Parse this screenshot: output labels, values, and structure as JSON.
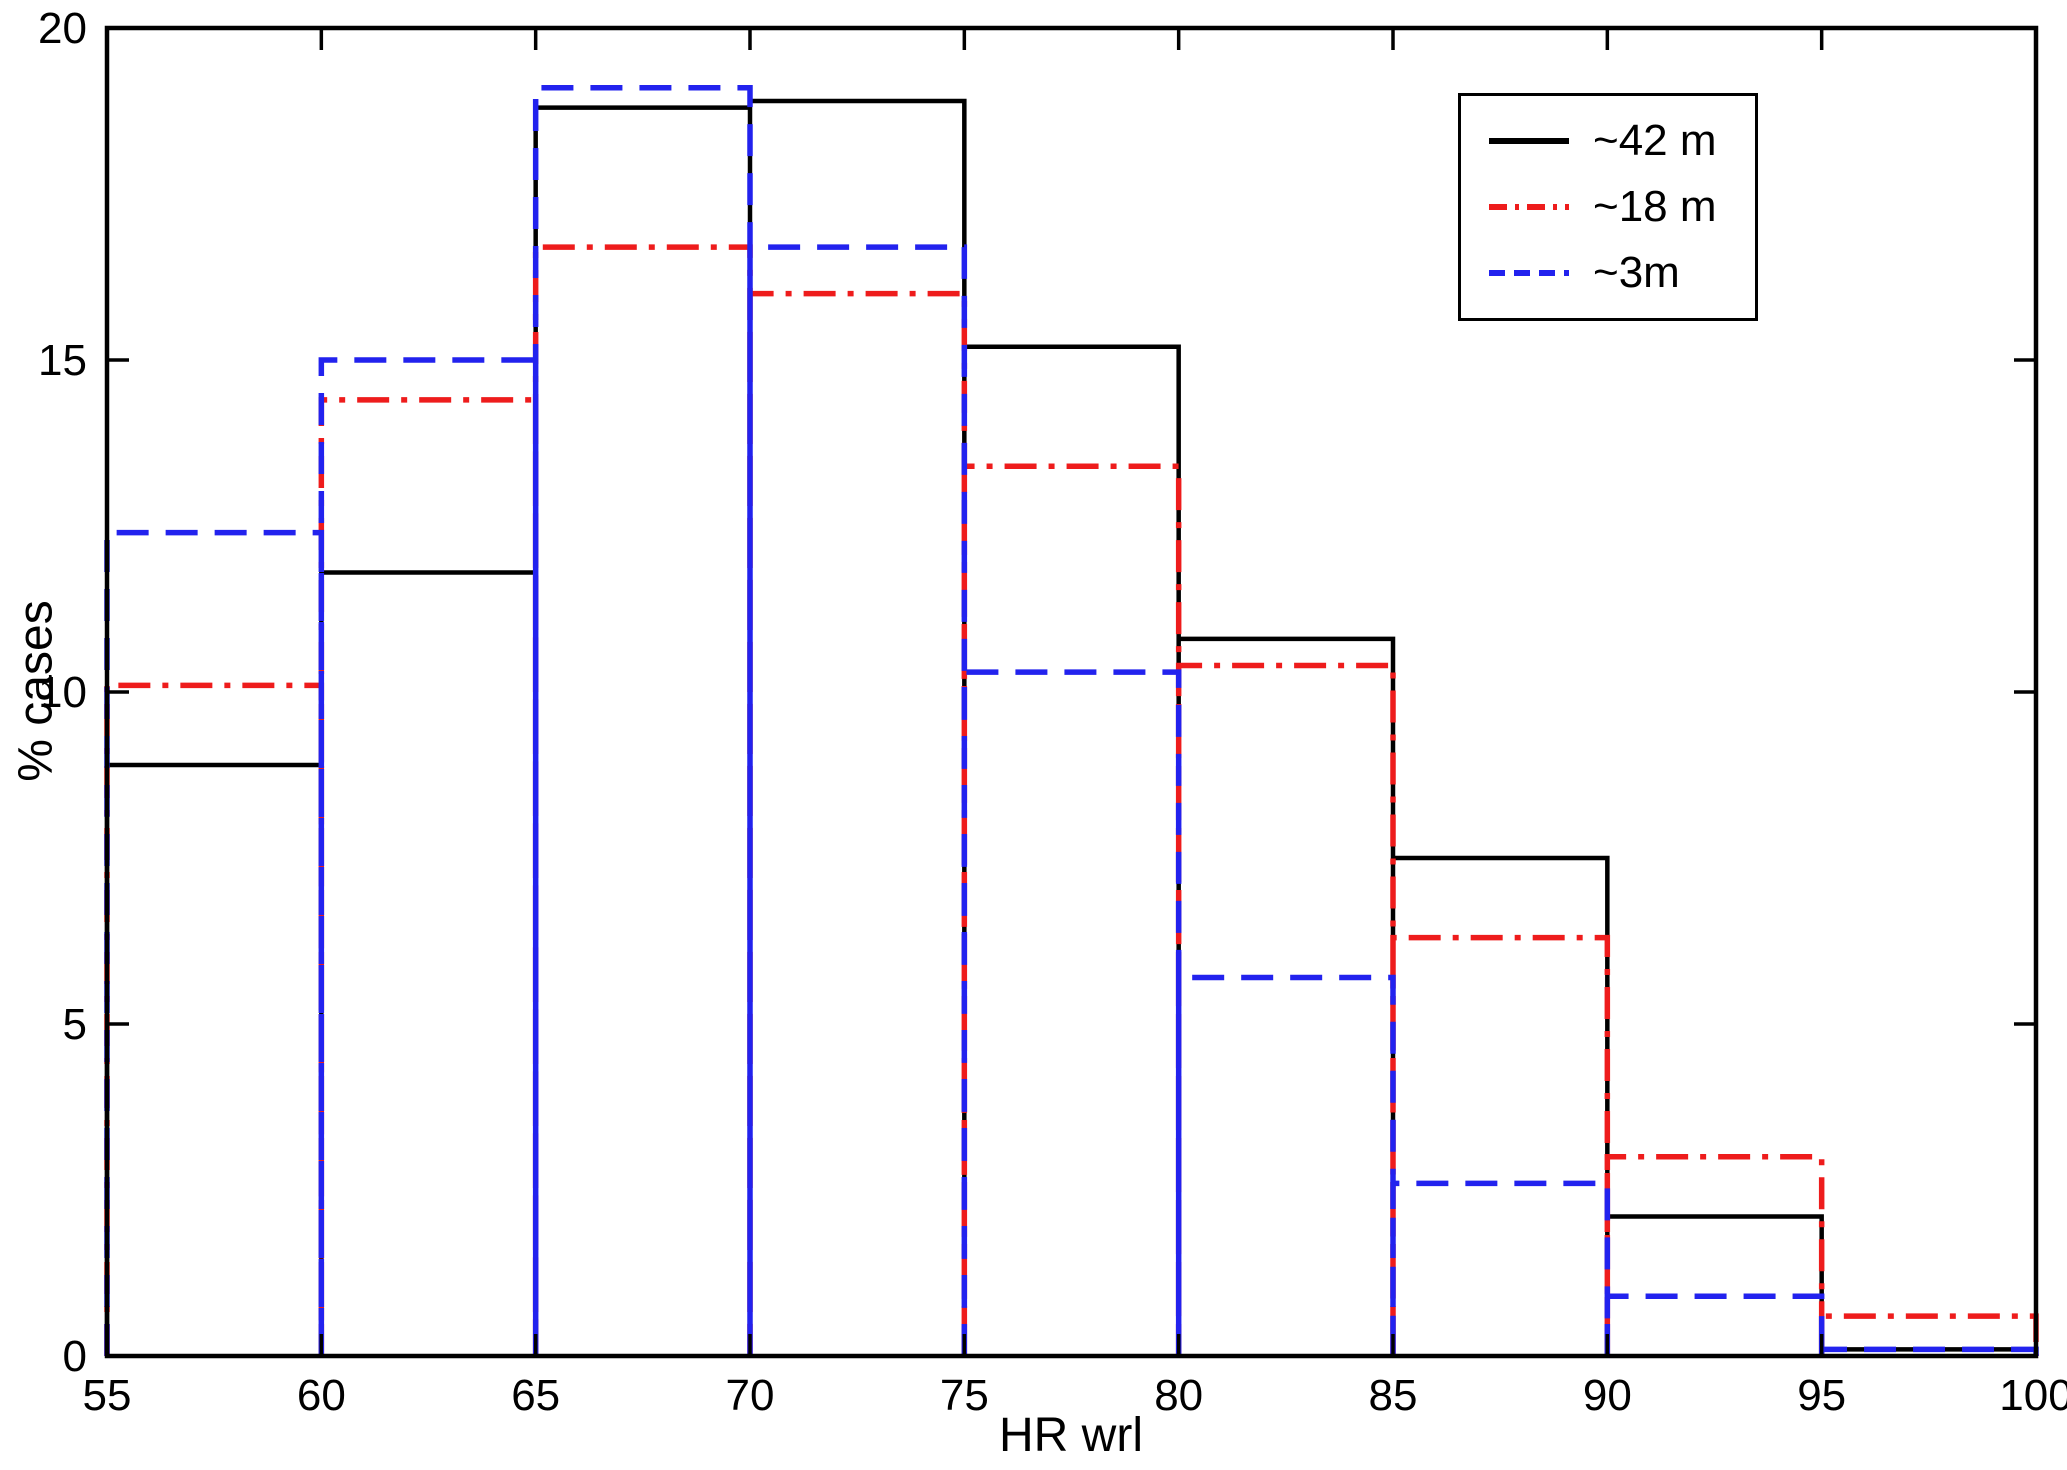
{
  "chart_data": {
    "type": "bar",
    "subtype": "step-histogram-outline",
    "title": "",
    "xlabel": "HR wrl",
    "ylabel": "% cases",
    "xlim": [
      55,
      100
    ],
    "ylim": [
      0,
      20
    ],
    "xticks": [
      55,
      60,
      65,
      70,
      75,
      80,
      85,
      90,
      95,
      100
    ],
    "yticks": [
      0,
      5,
      10,
      15,
      20
    ],
    "grid": false,
    "legend_position": "top-right",
    "bin_edges": [
      55,
      60,
      65,
      70,
      75,
      80,
      85,
      90,
      95,
      100
    ],
    "series": [
      {
        "name": "~42 m",
        "color": "#000000",
        "dash": "solid",
        "values": [
          8.9,
          11.8,
          18.8,
          18.9,
          15.2,
          10.8,
          7.5,
          2.1,
          0.1
        ]
      },
      {
        "name": "~18 m",
        "color": "#ee1c1c",
        "dash": "dash-dot",
        "values": [
          10.1,
          14.4,
          16.7,
          16.0,
          13.4,
          10.4,
          6.3,
          3.0,
          0.6
        ]
      },
      {
        "name": "~3m",
        "color": "#2222ee",
        "dash": "dashed",
        "values": [
          12.4,
          15.0,
          19.1,
          16.7,
          10.3,
          5.7,
          2.6,
          0.9,
          0.1
        ]
      }
    ]
  }
}
